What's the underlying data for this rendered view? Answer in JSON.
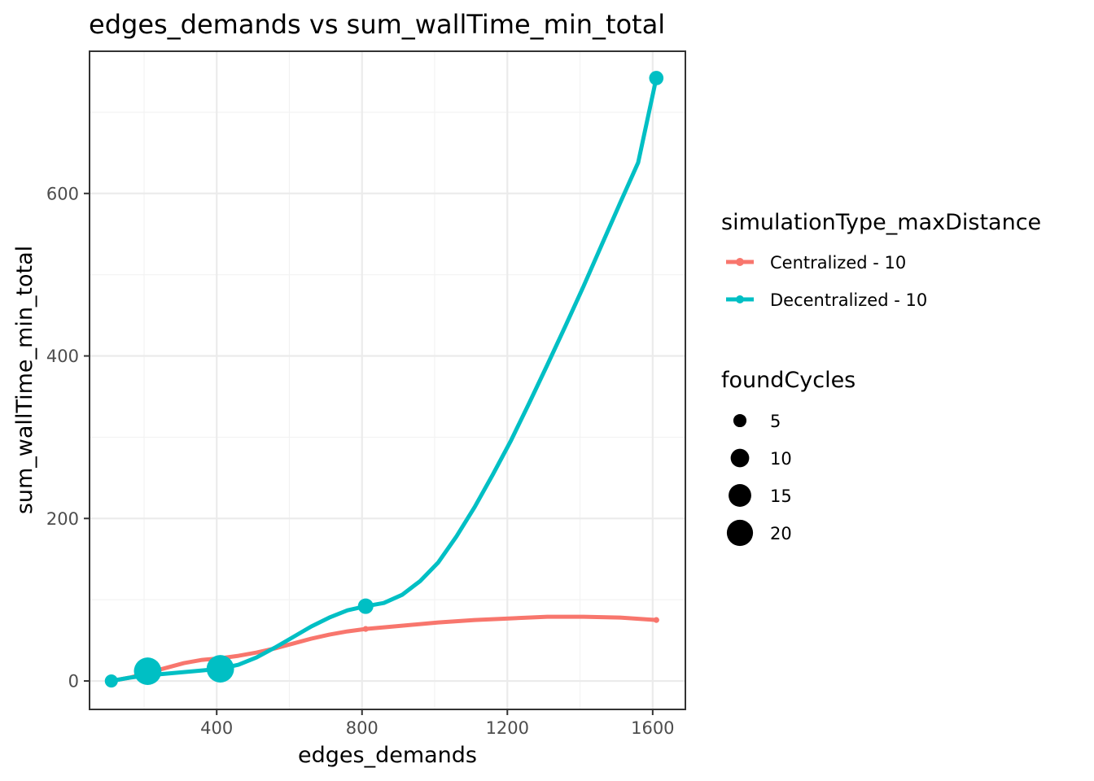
{
  "chart_data": {
    "type": "line",
    "title": "edges_demands  vs  sum_wallTime_min_total",
    "xlabel": "edges_demands",
    "ylabel": "sum_wallTime_min_total",
    "xlim": [
      50,
      1690
    ],
    "ylim": [
      -35,
      775
    ],
    "x_ticks": [
      400,
      800,
      1200,
      1600
    ],
    "x_tick_labels": [
      "400",
      "800",
      "1200",
      "1600"
    ],
    "y_ticks": [
      0,
      200,
      400,
      600
    ],
    "y_tick_labels": [
      "0",
      "200",
      "400",
      "600"
    ],
    "grid": true,
    "legend_position": "right",
    "series": [
      {
        "name": "Centralized - 10",
        "color": "#F8766D",
        "points": [
          {
            "x": 110,
            "y": 0,
            "foundCycles": 1
          },
          {
            "x": 210,
            "y": 8,
            "foundCycles": 1
          },
          {
            "x": 410,
            "y": 25,
            "foundCycles": 1
          },
          {
            "x": 810,
            "y": 64,
            "foundCycles": 1
          },
          {
            "x": 1610,
            "y": 75,
            "foundCycles": 1
          }
        ],
        "curve": [
          [
            110,
            0
          ],
          [
            160,
            4
          ],
          [
            210,
            10
          ],
          [
            260,
            16
          ],
          [
            310,
            22
          ],
          [
            360,
            26
          ],
          [
            410,
            28
          ],
          [
            460,
            31
          ],
          [
            510,
            35
          ],
          [
            560,
            40
          ],
          [
            610,
            46
          ],
          [
            660,
            52
          ],
          [
            710,
            57
          ],
          [
            760,
            61
          ],
          [
            810,
            64
          ],
          [
            910,
            68
          ],
          [
            1010,
            72
          ],
          [
            1110,
            75
          ],
          [
            1210,
            77
          ],
          [
            1310,
            79
          ],
          [
            1410,
            79
          ],
          [
            1510,
            78
          ],
          [
            1610,
            75
          ]
        ]
      },
      {
        "name": "Decentralized - 10",
        "color": "#00BFC4",
        "points": [
          {
            "x": 110,
            "y": 0,
            "foundCycles": 5
          },
          {
            "x": 210,
            "y": 12,
            "foundCycles": 22
          },
          {
            "x": 410,
            "y": 15,
            "foundCycles": 22
          },
          {
            "x": 810,
            "y": 92,
            "foundCycles": 7
          },
          {
            "x": 1610,
            "y": 742,
            "foundCycles": 6
          }
        ],
        "curve": [
          [
            110,
            0
          ],
          [
            160,
            4
          ],
          [
            210,
            7
          ],
          [
            260,
            9
          ],
          [
            310,
            11
          ],
          [
            360,
            13
          ],
          [
            410,
            15
          ],
          [
            460,
            20
          ],
          [
            510,
            29
          ],
          [
            560,
            41
          ],
          [
            610,
            54
          ],
          [
            660,
            67
          ],
          [
            710,
            78
          ],
          [
            760,
            87
          ],
          [
            810,
            92
          ],
          [
            860,
            96
          ],
          [
            910,
            106
          ],
          [
            960,
            123
          ],
          [
            1010,
            146
          ],
          [
            1060,
            178
          ],
          [
            1110,
            214
          ],
          [
            1160,
            254
          ],
          [
            1210,
            296
          ],
          [
            1260,
            342
          ],
          [
            1310,
            389
          ],
          [
            1360,
            437
          ],
          [
            1410,
            486
          ],
          [
            1460,
            537
          ],
          [
            1510,
            588
          ],
          [
            1560,
            638
          ],
          [
            1610,
            742
          ]
        ]
      }
    ],
    "color_legend": {
      "title": "simulationType_maxDistance",
      "entries": [
        "Centralized - 10",
        "Decentralized - 10"
      ]
    },
    "size_legend": {
      "title": "foundCycles",
      "entries": [
        {
          "label": "5",
          "value": 5
        },
        {
          "label": "10",
          "value": 10
        },
        {
          "label": "15",
          "value": 15
        },
        {
          "label": "20",
          "value": 20
        }
      ]
    }
  }
}
